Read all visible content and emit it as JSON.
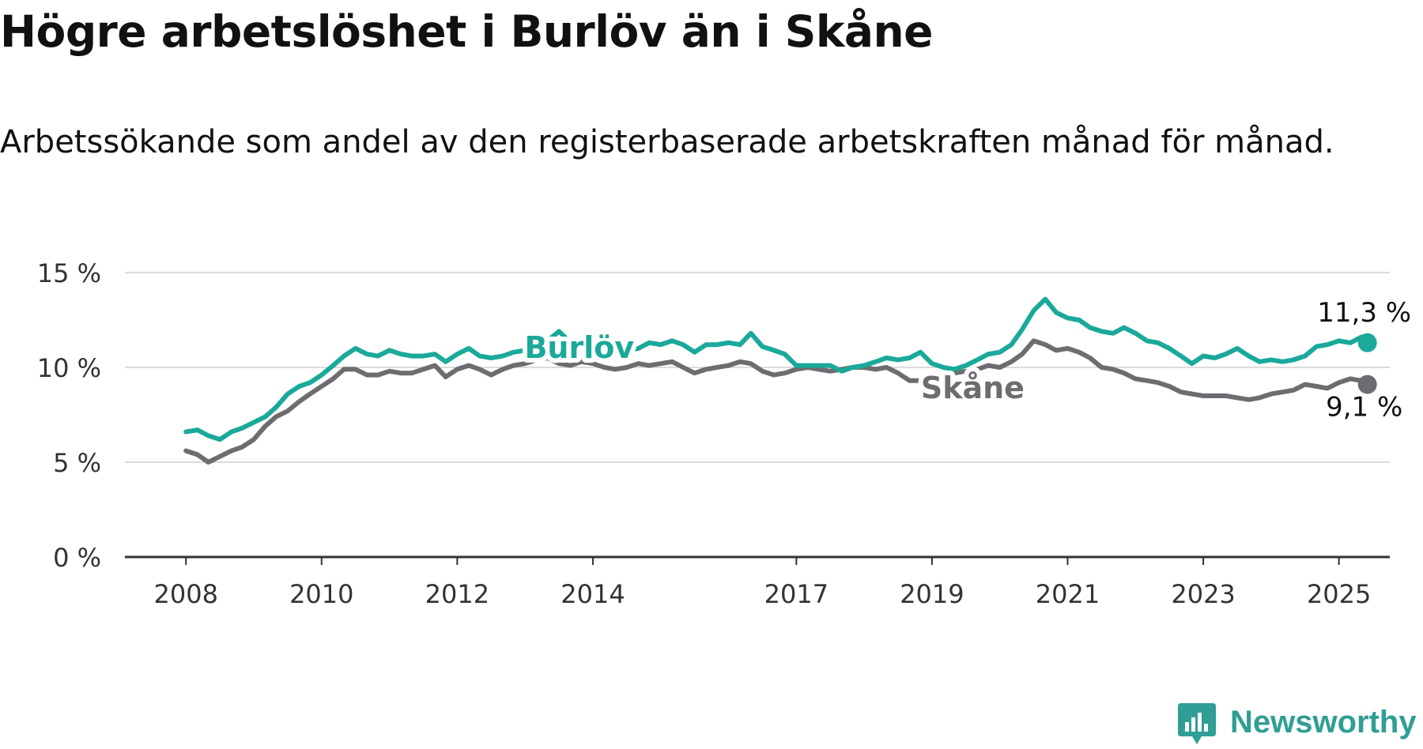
{
  "title": "Högre arbetslöshet i Burlöv än i Skåne",
  "subtitle": "Arbetssökande som andel av den registerbaserade arbetskraften månad för månad.",
  "brand": {
    "name": "Newsworthy",
    "color": "#2f9e95",
    "icon": "newsworthy-logo-icon"
  },
  "chart_data": {
    "type": "line",
    "title": "Högre arbetslöshet i Burlöv än i Skåne",
    "subtitle": "Arbetssökande som andel av den registerbaserade arbetskraften månad för månad.",
    "xlabel": "",
    "ylabel": "",
    "xlim": [
      2007.1,
      2025.75
    ],
    "ylim": [
      0,
      15
    ],
    "grid": true,
    "legend": "inline labels",
    "x_ticks": [
      2008,
      2010,
      2012,
      2014,
      2017,
      2019,
      2021,
      2023,
      2025
    ],
    "y_ticks": [
      0,
      5,
      10,
      15
    ],
    "y_tick_labels": [
      "0 %",
      "5 %",
      "10 %",
      "15 %"
    ],
    "series": [
      {
        "name": "Burlöv",
        "color": "#1aa99a",
        "end_label": "11,3 %",
        "points": [
          [
            2008.0,
            6.6
          ],
          [
            2008.17,
            6.7
          ],
          [
            2008.33,
            6.4
          ],
          [
            2008.5,
            6.2
          ],
          [
            2008.67,
            6.6
          ],
          [
            2008.83,
            6.8
          ],
          [
            2009.0,
            7.1
          ],
          [
            2009.17,
            7.4
          ],
          [
            2009.33,
            7.9
          ],
          [
            2009.5,
            8.6
          ],
          [
            2009.67,
            9.0
          ],
          [
            2009.83,
            9.2
          ],
          [
            2010.0,
            9.6
          ],
          [
            2010.17,
            10.1
          ],
          [
            2010.33,
            10.6
          ],
          [
            2010.5,
            11.0
          ],
          [
            2010.67,
            10.7
          ],
          [
            2010.83,
            10.6
          ],
          [
            2011.0,
            10.9
          ],
          [
            2011.17,
            10.7
          ],
          [
            2011.33,
            10.6
          ],
          [
            2011.5,
            10.6
          ],
          [
            2011.67,
            10.7
          ],
          [
            2011.83,
            10.3
          ],
          [
            2012.0,
            10.7
          ],
          [
            2012.17,
            11.0
          ],
          [
            2012.33,
            10.6
          ],
          [
            2012.5,
            10.5
          ],
          [
            2012.67,
            10.6
          ],
          [
            2012.83,
            10.8
          ],
          [
            2013.0,
            10.9
          ],
          [
            2013.17,
            11.0
          ],
          [
            2013.33,
            11.4
          ],
          [
            2013.5,
            11.9
          ],
          [
            2013.67,
            11.3
          ],
          [
            2013.83,
            11.0
          ],
          [
            2014.0,
            11.1
          ],
          [
            2014.17,
            11.3
          ],
          [
            2014.33,
            11.0
          ],
          [
            2014.5,
            10.9
          ],
          [
            2014.67,
            11.0
          ],
          [
            2014.83,
            11.3
          ],
          [
            2015.0,
            11.2
          ],
          [
            2015.17,
            11.4
          ],
          [
            2015.33,
            11.2
          ],
          [
            2015.5,
            10.8
          ],
          [
            2015.67,
            11.2
          ],
          [
            2015.83,
            11.2
          ],
          [
            2016.0,
            11.3
          ],
          [
            2016.17,
            11.2
          ],
          [
            2016.33,
            11.8
          ],
          [
            2016.5,
            11.1
          ],
          [
            2016.67,
            10.9
          ],
          [
            2016.83,
            10.7
          ],
          [
            2017.0,
            10.1
          ],
          [
            2017.17,
            10.1
          ],
          [
            2017.33,
            10.1
          ],
          [
            2017.5,
            10.1
          ],
          [
            2017.67,
            9.8
          ],
          [
            2017.83,
            10.0
          ],
          [
            2018.0,
            10.1
          ],
          [
            2018.17,
            10.3
          ],
          [
            2018.33,
            10.5
          ],
          [
            2018.5,
            10.4
          ],
          [
            2018.67,
            10.5
          ],
          [
            2018.83,
            10.8
          ],
          [
            2019.0,
            10.2
          ],
          [
            2019.17,
            10.0
          ],
          [
            2019.33,
            9.9
          ],
          [
            2019.5,
            10.1
          ],
          [
            2019.67,
            10.4
          ],
          [
            2019.83,
            10.7
          ],
          [
            2020.0,
            10.8
          ],
          [
            2020.17,
            11.2
          ],
          [
            2020.33,
            12.0
          ],
          [
            2020.5,
            13.0
          ],
          [
            2020.67,
            13.6
          ],
          [
            2020.83,
            12.9
          ],
          [
            2021.0,
            12.6
          ],
          [
            2021.17,
            12.5
          ],
          [
            2021.33,
            12.1
          ],
          [
            2021.5,
            11.9
          ],
          [
            2021.67,
            11.8
          ],
          [
            2021.83,
            12.1
          ],
          [
            2022.0,
            11.8
          ],
          [
            2022.17,
            11.4
          ],
          [
            2022.33,
            11.3
          ],
          [
            2022.5,
            11.0
          ],
          [
            2022.67,
            10.6
          ],
          [
            2022.83,
            10.2
          ],
          [
            2023.0,
            10.6
          ],
          [
            2023.17,
            10.5
          ],
          [
            2023.33,
            10.7
          ],
          [
            2023.5,
            11.0
          ],
          [
            2023.67,
            10.6
          ],
          [
            2023.83,
            10.3
          ],
          [
            2024.0,
            10.4
          ],
          [
            2024.17,
            10.3
          ],
          [
            2024.33,
            10.4
          ],
          [
            2024.5,
            10.6
          ],
          [
            2024.67,
            11.1
          ],
          [
            2024.83,
            11.2
          ],
          [
            2025.0,
            11.4
          ],
          [
            2025.17,
            11.3
          ],
          [
            2025.33,
            11.6
          ],
          [
            2025.42,
            11.3
          ]
        ]
      },
      {
        "name": "Skåne",
        "color": "#6e6c70",
        "end_label": "9,1 %",
        "points": [
          [
            2008.0,
            5.6
          ],
          [
            2008.17,
            5.4
          ],
          [
            2008.33,
            5.0
          ],
          [
            2008.5,
            5.3
          ],
          [
            2008.67,
            5.6
          ],
          [
            2008.83,
            5.8
          ],
          [
            2009.0,
            6.2
          ],
          [
            2009.17,
            6.9
          ],
          [
            2009.33,
            7.4
          ],
          [
            2009.5,
            7.7
          ],
          [
            2009.67,
            8.2
          ],
          [
            2009.83,
            8.6
          ],
          [
            2010.0,
            9.0
          ],
          [
            2010.17,
            9.4
          ],
          [
            2010.33,
            9.9
          ],
          [
            2010.5,
            9.9
          ],
          [
            2010.67,
            9.6
          ],
          [
            2010.83,
            9.6
          ],
          [
            2011.0,
            9.8
          ],
          [
            2011.17,
            9.7
          ],
          [
            2011.33,
            9.7
          ],
          [
            2011.5,
            9.9
          ],
          [
            2011.67,
            10.1
          ],
          [
            2011.83,
            9.5
          ],
          [
            2012.0,
            9.9
          ],
          [
            2012.17,
            10.1
          ],
          [
            2012.33,
            9.9
          ],
          [
            2012.5,
            9.6
          ],
          [
            2012.67,
            9.9
          ],
          [
            2012.83,
            10.1
          ],
          [
            2013.0,
            10.2
          ],
          [
            2013.17,
            10.4
          ],
          [
            2013.33,
            10.5
          ],
          [
            2013.5,
            10.2
          ],
          [
            2013.67,
            10.1
          ],
          [
            2013.83,
            10.3
          ],
          [
            2014.0,
            10.2
          ],
          [
            2014.17,
            10.0
          ],
          [
            2014.33,
            9.9
          ],
          [
            2014.5,
            10.0
          ],
          [
            2014.67,
            10.2
          ],
          [
            2014.83,
            10.1
          ],
          [
            2015.0,
            10.2
          ],
          [
            2015.17,
            10.3
          ],
          [
            2015.33,
            10.0
          ],
          [
            2015.5,
            9.7
          ],
          [
            2015.67,
            9.9
          ],
          [
            2015.83,
            10.0
          ],
          [
            2016.0,
            10.1
          ],
          [
            2016.17,
            10.3
          ],
          [
            2016.33,
            10.2
          ],
          [
            2016.5,
            9.8
          ],
          [
            2016.67,
            9.6
          ],
          [
            2016.83,
            9.7
          ],
          [
            2017.0,
            9.9
          ],
          [
            2017.17,
            10.0
          ],
          [
            2017.33,
            9.9
          ],
          [
            2017.5,
            9.8
          ],
          [
            2017.67,
            9.9
          ],
          [
            2017.83,
            10.0
          ],
          [
            2018.0,
            10.0
          ],
          [
            2018.17,
            9.9
          ],
          [
            2018.33,
            10.0
          ],
          [
            2018.5,
            9.7
          ],
          [
            2018.67,
            9.3
          ],
          [
            2018.83,
            9.3
          ],
          [
            2019.0,
            9.3
          ],
          [
            2019.17,
            9.4
          ],
          [
            2019.33,
            9.7
          ],
          [
            2019.5,
            9.8
          ],
          [
            2019.67,
            9.9
          ],
          [
            2019.83,
            10.1
          ],
          [
            2020.0,
            10.0
          ],
          [
            2020.17,
            10.3
          ],
          [
            2020.33,
            10.7
          ],
          [
            2020.5,
            11.4
          ],
          [
            2020.67,
            11.2
          ],
          [
            2020.83,
            10.9
          ],
          [
            2021.0,
            11.0
          ],
          [
            2021.17,
            10.8
          ],
          [
            2021.33,
            10.5
          ],
          [
            2021.5,
            10.0
          ],
          [
            2021.67,
            9.9
          ],
          [
            2021.83,
            9.7
          ],
          [
            2022.0,
            9.4
          ],
          [
            2022.17,
            9.3
          ],
          [
            2022.33,
            9.2
          ],
          [
            2022.5,
            9.0
          ],
          [
            2022.67,
            8.7
          ],
          [
            2022.83,
            8.6
          ],
          [
            2023.0,
            8.5
          ],
          [
            2023.17,
            8.5
          ],
          [
            2023.33,
            8.5
          ],
          [
            2023.5,
            8.4
          ],
          [
            2023.67,
            8.3
          ],
          [
            2023.83,
            8.4
          ],
          [
            2024.0,
            8.6
          ],
          [
            2024.17,
            8.7
          ],
          [
            2024.33,
            8.8
          ],
          [
            2024.5,
            9.1
          ],
          [
            2024.67,
            9.0
          ],
          [
            2024.83,
            8.9
          ],
          [
            2025.0,
            9.2
          ],
          [
            2025.17,
            9.4
          ],
          [
            2025.33,
            9.3
          ],
          [
            2025.42,
            9.1
          ]
        ]
      }
    ]
  }
}
